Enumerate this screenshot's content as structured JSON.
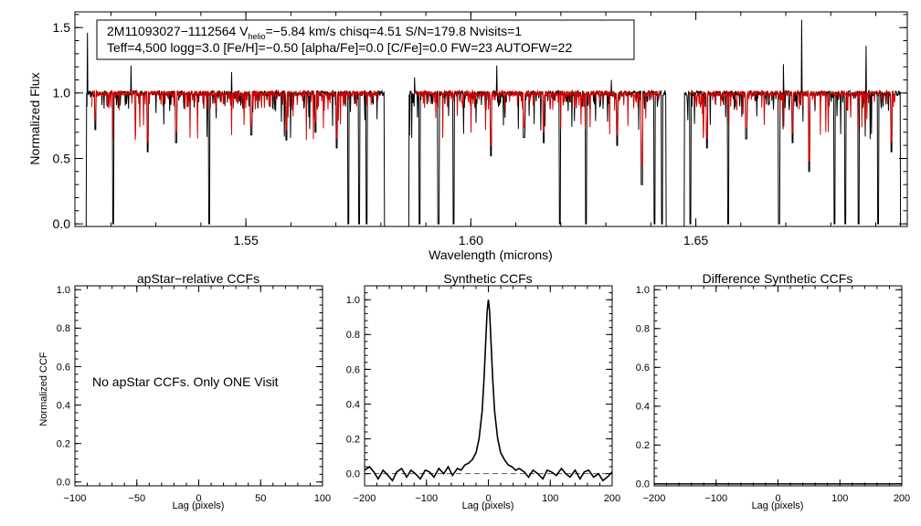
{
  "colors": {
    "axes": "#000000",
    "observed": "#000000",
    "model": "#d40000",
    "dashed": "#555555"
  },
  "spectrum_info": {
    "line1_pre": "2M11093027−1112564  V",
    "line1_sub": "helio",
    "line1_post": "=−5.84 km/s  chisq=4.51  S/N=179.8  Nvisits=1",
    "line2": "Teff=4,500 logg=3.0 [Fe/H]=−0.50 [alpha/Fe]=0.0 [C/Fe]=0.0 FW=23 AUTOFW=22"
  },
  "panel2_note": "No apStar CCFs.  Only ONE Visit",
  "chart_data": [
    {
      "id": "spectrum",
      "type": "line",
      "title": "",
      "xlabel": "Wavelength (microns)",
      "ylabel": "Normalized Flux",
      "xlim": [
        1.512,
        1.697
      ],
      "ylim": [
        -0.02,
        1.62
      ],
      "xticks": [
        1.55,
        1.6,
        1.65
      ],
      "xtick_labels": [
        "1.55",
        "1.60",
        "1.65"
      ],
      "yticks": [
        0.0,
        0.5,
        1.0,
        1.5
      ],
      "ytick_labels": [
        "0.0",
        "0.5",
        "1.0",
        "1.5"
      ],
      "detector_ranges": [
        [
          1.5145,
          1.5808
        ],
        [
          1.5862,
          1.6434
        ],
        [
          1.6474,
          1.6955
        ]
      ],
      "continuum": 1.0,
      "series": [
        {
          "name": "observed spectrum",
          "color": "black"
        },
        {
          "name": "best-fit model",
          "color": "red"
        }
      ],
      "deep_lines": [
        {
          "x": 1.5205,
          "depth": 0.0
        },
        {
          "x": 1.5418,
          "depth": 0.0
        },
        {
          "x": 1.5728,
          "depth": 0.0
        },
        {
          "x": 1.5752,
          "depth": 0.0
        },
        {
          "x": 1.5768,
          "depth": 0.0
        },
        {
          "x": 1.5886,
          "depth": 0.0
        },
        {
          "x": 1.5928,
          "depth": 0.0
        },
        {
          "x": 1.5962,
          "depth": 0.0
        },
        {
          "x": 1.6198,
          "depth": 0.0
        },
        {
          "x": 1.6256,
          "depth": 0.0
        },
        {
          "x": 1.6408,
          "depth": 0.0
        },
        {
          "x": 1.6425,
          "depth": 0.0
        },
        {
          "x": 1.6488,
          "depth": 0.0
        },
        {
          "x": 1.6572,
          "depth": 0.0
        },
        {
          "x": 1.6685,
          "depth": 0.0
        },
        {
          "x": 1.6808,
          "depth": 0.0
        },
        {
          "x": 1.6832,
          "depth": 0.0
        },
        {
          "x": 1.6862,
          "depth": 0.0
        },
        {
          "x": 1.6905,
          "depth": 0.0
        }
      ],
      "medium_lines": [
        {
          "x": 1.5165,
          "depth": 0.72
        },
        {
          "x": 1.5282,
          "depth": 0.55
        },
        {
          "x": 1.5345,
          "depth": 0.62
        },
        {
          "x": 1.5512,
          "depth": 0.68
        },
        {
          "x": 1.559,
          "depth": 0.64
        },
        {
          "x": 1.5655,
          "depth": 0.7
        },
        {
          "x": 1.5702,
          "depth": 0.58
        },
        {
          "x": 1.6045,
          "depth": 0.52
        },
        {
          "x": 1.6118,
          "depth": 0.66
        },
        {
          "x": 1.6162,
          "depth": 0.62
        },
        {
          "x": 1.6325,
          "depth": 0.6
        },
        {
          "x": 1.638,
          "depth": 0.3
        },
        {
          "x": 1.6525,
          "depth": 0.58
        },
        {
          "x": 1.6612,
          "depth": 0.65
        },
        {
          "x": 1.6715,
          "depth": 0.62
        },
        {
          "x": 1.6752,
          "depth": 0.4
        },
        {
          "x": 1.6935,
          "depth": 0.55
        }
      ],
      "spikes": [
        {
          "x": 1.5148,
          "height": 1.46
        },
        {
          "x": 1.5245,
          "height": 1.21
        },
        {
          "x": 1.5468,
          "height": 1.16
        },
        {
          "x": 1.5875,
          "height": 1.12
        },
        {
          "x": 1.6058,
          "height": 1.21
        },
        {
          "x": 1.6312,
          "height": 1.1
        },
        {
          "x": 1.6695,
          "height": 1.22
        },
        {
          "x": 1.6735,
          "height": 1.56
        },
        {
          "x": 1.6878,
          "height": 1.36
        }
      ]
    },
    {
      "id": "apstar-ccf",
      "type": "line",
      "title": "apStar−relative CCFs",
      "xlabel": "Lag (pixels)",
      "ylabel": "Normalized CCF",
      "xlim": [
        -100,
        100
      ],
      "ylim": [
        -0.02,
        1.02
      ],
      "xticks": [
        -100,
        -50,
        0,
        50,
        100
      ],
      "xtick_labels": [
        "−100",
        "−50",
        "0",
        "50",
        "100"
      ],
      "yticks": [
        0.0,
        0.2,
        0.4,
        0.6,
        0.8,
        1.0
      ],
      "ytick_labels": [
        "0.0",
        "0.2",
        "0.4",
        "0.6",
        "0.8",
        "1.0"
      ],
      "series": []
    },
    {
      "id": "synthetic-ccf",
      "type": "line",
      "title": "Synthetic CCFs",
      "xlabel": "Lag (pixels)",
      "ylabel": "",
      "xlim": [
        -200,
        200
      ],
      "ylim": [
        -0.07,
        1.08
      ],
      "xticks": [
        -200,
        -100,
        0,
        100,
        200
      ],
      "xtick_labels": [
        "−200",
        "−100",
        "0",
        "100",
        "200"
      ],
      "yticks": [
        0.0,
        0.2,
        0.4,
        0.6,
        0.8,
        1.0
      ],
      "ytick_labels": [
        "0.0",
        "0.2",
        "0.4",
        "0.6",
        "0.8",
        "1.0"
      ],
      "baseline": 0.0,
      "series": [
        {
          "name": "synthetic CCF",
          "x": [
            -200,
            -192,
            -185,
            -178,
            -170,
            -162,
            -155,
            -148,
            -140,
            -132,
            -125,
            -118,
            -110,
            -102,
            -95,
            -88,
            -80,
            -72,
            -65,
            -58,
            -50,
            -44,
            -38,
            -32,
            -26,
            -20,
            -15,
            -10,
            -7,
            -4,
            -2,
            0,
            2,
            4,
            7,
            10,
            15,
            20,
            26,
            32,
            38,
            44,
            50,
            58,
            65,
            72,
            80,
            88,
            95,
            102,
            110,
            118,
            125,
            132,
            140,
            148,
            155,
            162,
            170,
            178,
            185,
            192,
            200
          ],
          "y": [
            0.02,
            0.04,
            0.01,
            -0.03,
            0.02,
            -0.01,
            -0.04,
            0.01,
            0.03,
            -0.02,
            0.02,
            0.0,
            -0.03,
            0.02,
            0.01,
            -0.02,
            0.03,
            0.0,
            0.04,
            -0.01,
            0.03,
            0.02,
            0.05,
            0.06,
            0.08,
            0.12,
            0.2,
            0.36,
            0.55,
            0.78,
            0.93,
            1.0,
            0.93,
            0.78,
            0.55,
            0.36,
            0.2,
            0.12,
            0.08,
            0.05,
            0.04,
            0.02,
            0.03,
            0.01,
            -0.02,
            0.02,
            0.0,
            -0.03,
            0.02,
            0.01,
            -0.01,
            0.03,
            0.0,
            -0.02,
            0.02,
            -0.03,
            0.01,
            0.02,
            -0.02,
            0.0,
            -0.04,
            -0.02,
            0.01
          ]
        },
        {
          "name": "zero level",
          "style": "dashed"
        }
      ]
    },
    {
      "id": "difference-ccf",
      "type": "line",
      "title": "Difference Synthetic CCFs",
      "xlabel": "Lag (pixels)",
      "ylabel": "",
      "xlim": [
        -200,
        200
      ],
      "ylim": [
        -0.01,
        1.02
      ],
      "xticks": [
        -200,
        -100,
        0,
        100,
        200
      ],
      "xtick_labels": [
        "−200",
        "−100",
        "0",
        "100",
        "200"
      ],
      "yticks": [
        0.0,
        0.2,
        0.4,
        0.6,
        0.8,
        1.0
      ],
      "ytick_labels": [
        "0.0",
        "0.2",
        "0.4",
        "0.6",
        "0.8",
        "1.0"
      ],
      "series": [
        {
          "name": "difference CCF",
          "constant": 0.0
        }
      ]
    }
  ]
}
